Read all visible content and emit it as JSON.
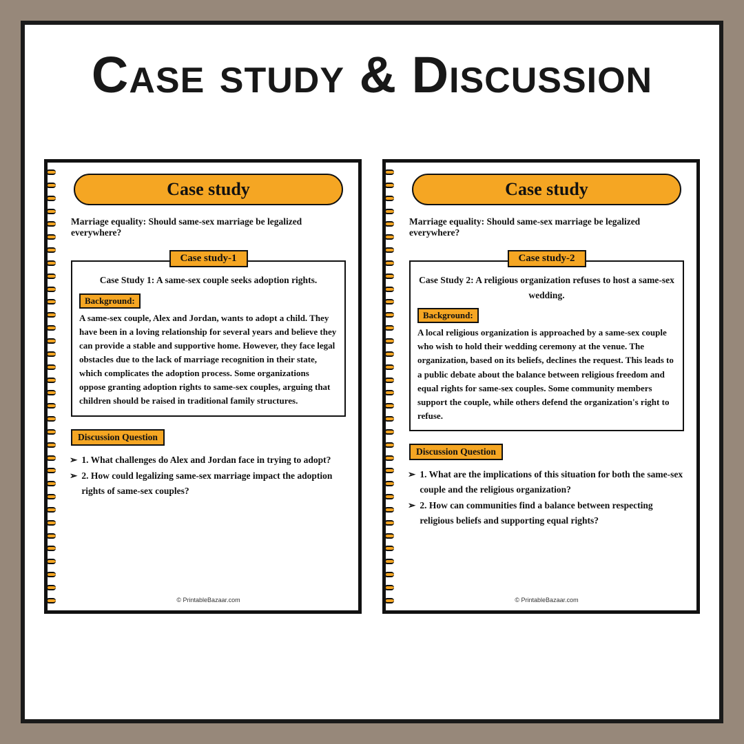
{
  "main_title": "Case study & Discussion",
  "accent_color": "#f5a623",
  "border_color": "#111111",
  "background_color": "#97887a",
  "page_bg": "#ffffff",
  "footer_text": "© PrintableBazaar.com",
  "pages": [
    {
      "pill_title": "Case study",
      "subtitle": "Marriage equality: Should same-sex marriage be legalized everywhere?",
      "case_tab": "Case study-1",
      "case_title": "Case Study 1: A same-sex couple seeks adoption rights.",
      "bg_label": "Background:",
      "bg_text": "A same-sex couple, Alex and Jordan, wants to adopt a child. They have been in a loving relationship for several years and believe they can provide a stable and supportive home. However, they face legal obstacles due to the lack of marriage recognition in their state, which complicates the adoption process. Some organizations oppose granting adoption rights to same-sex couples, arguing that children should be raised in traditional family structures.",
      "dq_label": "Discussion Question",
      "questions": [
        "1. What challenges do Alex and Jordan face in trying to adopt?",
        "2. How could legalizing same-sex marriage impact the adoption rights of same-sex couples?"
      ]
    },
    {
      "pill_title": "Case study",
      "subtitle": "Marriage equality: Should same-sex marriage be legalized everywhere?",
      "case_tab": "Case study-2",
      "case_title": "Case Study 2: A religious organization refuses to host a same-sex wedding.",
      "bg_label": "Background:",
      "bg_text": "A local religious organization is approached by a same-sex couple who wish to hold their wedding ceremony at the venue. The organization, based on its beliefs, declines the request. This leads to a public debate about the balance between religious freedom and equal rights for same-sex couples. Some community members support the couple, while others defend the organization's right to refuse.",
      "dq_label": "Discussion Question",
      "questions": [
        "1. What are the implications of this situation for both the same-sex couple and the religious organization?",
        "2. How can communities find a balance between respecting religious beliefs and supporting equal rights?"
      ]
    }
  ]
}
